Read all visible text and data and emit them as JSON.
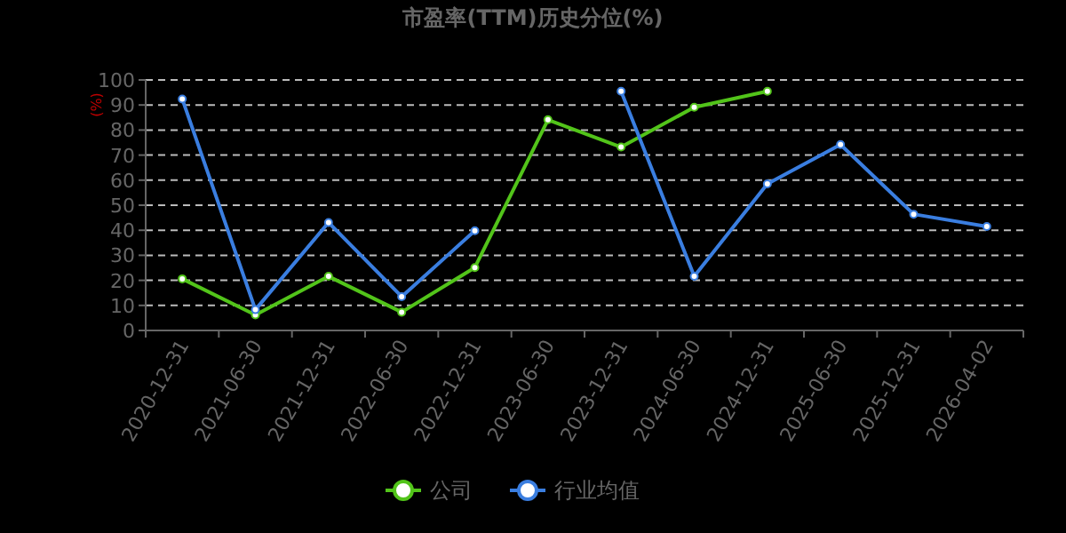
{
  "chart_data": {
    "type": "line",
    "title": "市盈率(TTM)历史分位(%)",
    "ylabel": "(%)",
    "categories": [
      "2020-12-31",
      "2021-06-30",
      "2021-12-31",
      "2022-06-30",
      "2022-12-31",
      "2023-06-30",
      "2023-12-31",
      "2024-06-30",
      "2024-12-31",
      "2025-06-30",
      "2025-12-31",
      "2026-04-02"
    ],
    "series": [
      {
        "name": "公司",
        "color": "#52c41a",
        "values": [
          20.6,
          6.2,
          21.6,
          7.3,
          25.1,
          84.1,
          73.2,
          89.1,
          95.5,
          null,
          null,
          null
        ]
      },
      {
        "name": "行业均值",
        "color": "#3a7ee0",
        "values": [
          92.4,
          8.3,
          43.1,
          13.5,
          39.8,
          null,
          95.5,
          21.6,
          58.5,
          74.2,
          46.4,
          41.5
        ]
      }
    ],
    "ylim": [
      0,
      100
    ],
    "yticks": [
      0,
      10,
      20,
      30,
      40,
      50,
      60,
      70,
      80,
      90,
      100
    ],
    "grid": "y",
    "legend": "bottom",
    "marker": "circle",
    "line_style": "solid"
  }
}
